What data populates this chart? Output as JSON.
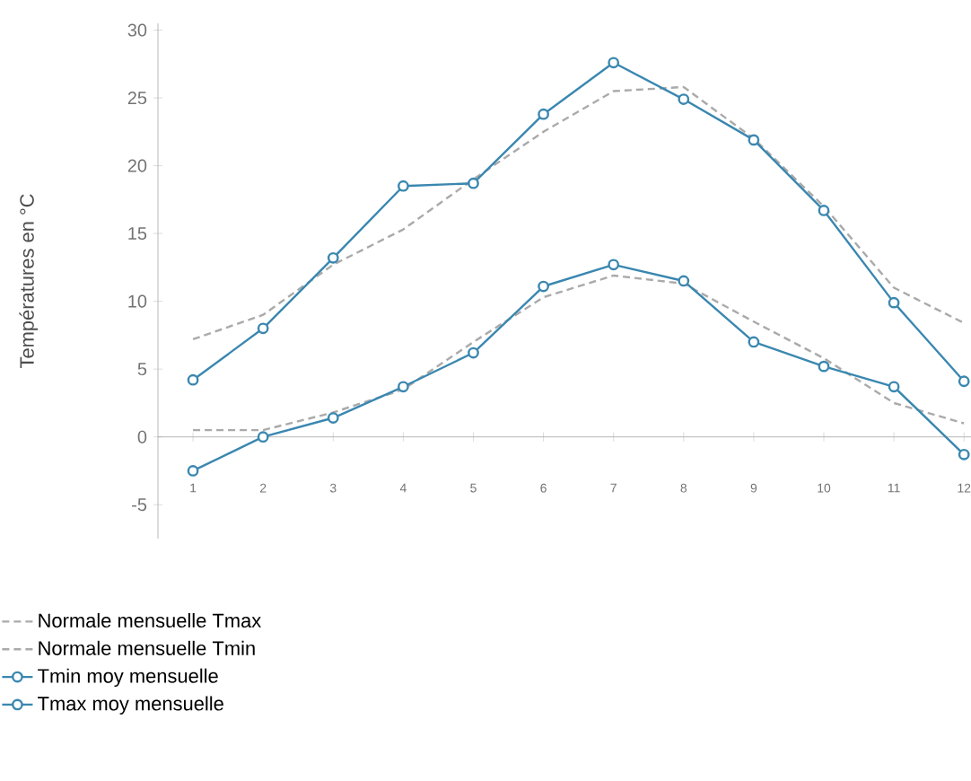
{
  "chart_data": {
    "type": "line",
    "ylabel": "Températures en °C",
    "x": [
      1,
      2,
      3,
      4,
      5,
      6,
      7,
      8,
      9,
      10,
      11,
      12
    ],
    "xlim": [
      0.5,
      12.1
    ],
    "xticks": [
      1,
      2,
      3,
      4,
      5,
      6,
      7,
      8,
      9,
      10,
      11,
      12
    ],
    "ylim": [
      -7.5,
      30.5
    ],
    "yticks": [
      -5,
      0,
      5,
      10,
      15,
      20,
      25,
      30
    ],
    "legend": "bottom left",
    "series": [
      {
        "name": "Normale mensuelle Tmax",
        "color": "#aaaaaa",
        "line_style": "dashed",
        "marker": "none",
        "values": [
          7.2,
          9.0,
          12.7,
          15.3,
          19.0,
          22.5,
          25.5,
          25.8,
          22.0,
          17.0,
          11.0,
          8.4
        ]
      },
      {
        "name": "Normale mensuelle Tmin",
        "color": "#aaaaaa",
        "line_style": "dashed",
        "marker": "none",
        "values": [
          0.5,
          0.5,
          1.8,
          3.5,
          7.0,
          10.3,
          11.9,
          11.3,
          8.5,
          5.8,
          2.5,
          1.0
        ]
      },
      {
        "name": "Tmin moy mensuelle",
        "color": "#3a87b0",
        "line_style": "solid",
        "marker": "circle",
        "values": [
          -2.5,
          0.0,
          1.4,
          3.7,
          6.2,
          11.1,
          12.7,
          11.5,
          7.0,
          5.2,
          3.7,
          -1.3
        ]
      },
      {
        "name": "Tmax moy mensuelle",
        "color": "#3a87b0",
        "line_style": "solid",
        "marker": "circle",
        "values": [
          4.2,
          8.0,
          13.2,
          18.5,
          18.7,
          23.8,
          27.6,
          24.9,
          21.9,
          16.7,
          9.9,
          4.1
        ]
      }
    ]
  }
}
